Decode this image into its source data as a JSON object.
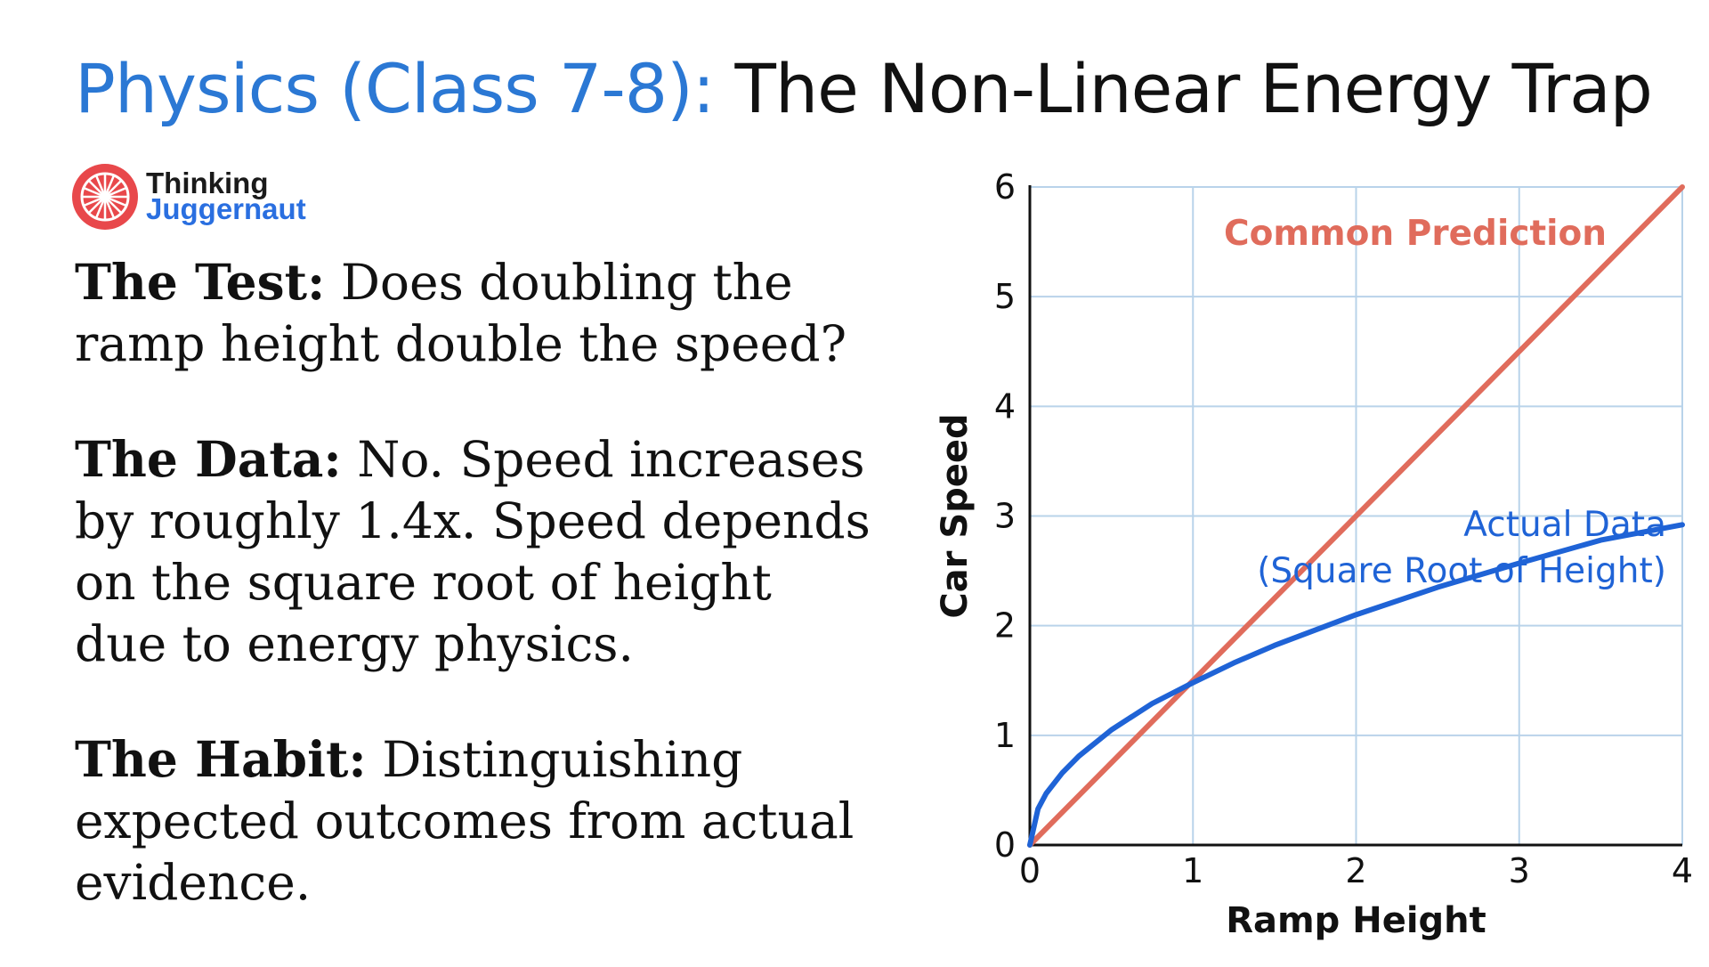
{
  "header": {
    "title_accent": "Physics (Class 7-8):",
    "title_main": "The Non-Linear Energy Trap"
  },
  "logo": {
    "line1": "Thinking",
    "line2": "Juggernaut",
    "icon": "wheel-logo-icon",
    "color": "#e8484b"
  },
  "points": [
    {
      "label": "The Test:",
      "text": "Does doubling the ramp height double the speed?"
    },
    {
      "label": "The Data:",
      "text": "No. Speed increases by roughly 1.4x. Speed depends on the square root of height due to energy physics."
    },
    {
      "label": "The Habit:",
      "text": "Distinguishing expected outcomes from actual evidence."
    }
  ],
  "chart_data": {
    "type": "line",
    "xlabel": "Ramp Height",
    "ylabel": "Car Speed",
    "xlim": [
      0,
      4
    ],
    "ylim": [
      0,
      6
    ],
    "xticks": [
      "0",
      "1",
      "2",
      "3",
      "4"
    ],
    "yticks": [
      "0",
      "1",
      "2",
      "3",
      "4",
      "5",
      "6"
    ],
    "grid": true,
    "series": [
      {
        "name": "Common Prediction",
        "color": "#e06c5c",
        "x": [
          0,
          4
        ],
        "y": [
          0,
          6
        ]
      },
      {
        "name": "Actual Data (Square Root of Height)",
        "name_lines": [
          "Actual Data",
          "(Square Root of Height)"
        ],
        "color": "#1f63d6",
        "x": [
          0,
          0.05,
          0.1,
          0.2,
          0.3,
          0.5,
          0.75,
          1,
          1.25,
          1.5,
          2,
          2.5,
          3,
          3.5,
          4
        ],
        "y": [
          0,
          0.33,
          0.47,
          0.66,
          0.81,
          1.05,
          1.29,
          1.48,
          1.66,
          1.82,
          2.1,
          2.35,
          2.57,
          2.78,
          2.92
        ]
      }
    ]
  }
}
